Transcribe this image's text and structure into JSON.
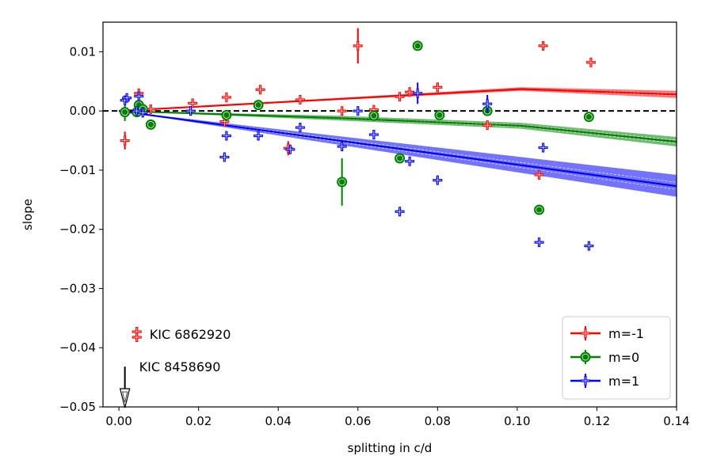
{
  "chart_data": {
    "type": "scatter",
    "title": "",
    "xlabel": "splitting in c/d",
    "ylabel": "slope",
    "xlim": [
      -0.004,
      0.14
    ],
    "ylim": [
      -0.05,
      0.015
    ],
    "xticks": [
      0.0,
      0.02,
      0.04,
      0.06,
      0.08,
      0.1,
      0.12,
      0.14
    ],
    "xtick_labels": [
      "0.00",
      "0.02",
      "0.04",
      "0.06",
      "0.08",
      "0.10",
      "0.12",
      "0.14"
    ],
    "yticks": [
      -0.05,
      -0.04,
      -0.03,
      -0.02,
      -0.01,
      0.0,
      0.01
    ],
    "ytick_labels": [
      "−0.05",
      "−0.04",
      "−0.03",
      "−0.02",
      "−0.01",
      "0.00",
      "0.01"
    ],
    "grid": false,
    "legend_position": "lower-right",
    "reference_line": {
      "y": 0,
      "style": "dashed",
      "color": "#000000"
    },
    "series": [
      {
        "name": "m=-1",
        "color": "#ff0000",
        "marker": "plus",
        "points": [
          {
            "x": 0.0015,
            "y": -0.005,
            "yerr": 0.0015
          },
          {
            "x": 0.0045,
            "y": -0.0002,
            "yerr": 0.0003
          },
          {
            "x": 0.005,
            "y": 0.003,
            "yerr": 0.0003
          },
          {
            "x": 0.006,
            "y": 0.0002,
            "yerr": 0.0003
          },
          {
            "x": 0.008,
            "y": 0.0003,
            "yerr": 0.0003
          },
          {
            "x": 0.0185,
            "y": 0.0013,
            "yerr": 0.0002
          },
          {
            "x": 0.0265,
            "y": -0.0018,
            "yerr": 0.0003
          },
          {
            "x": 0.027,
            "y": 0.0023,
            "yerr": 0.0002
          },
          {
            "x": 0.0355,
            "y": 0.0036,
            "yerr": 0.0002
          },
          {
            "x": 0.0425,
            "y": -0.0063,
            "yerr": 0.0012
          },
          {
            "x": 0.0455,
            "y": 0.0019,
            "yerr": 0.0002
          },
          {
            "x": 0.056,
            "y": 0.0,
            "yerr": 0.0002
          },
          {
            "x": 0.06,
            "y": 0.011,
            "yerr": 0.003
          },
          {
            "x": 0.064,
            "y": 0.0002,
            "yerr": 0.0002
          },
          {
            "x": 0.0705,
            "y": 0.0024,
            "yerr": 0.0003
          },
          {
            "x": 0.073,
            "y": 0.0032,
            "yerr": 0.0004
          },
          {
            "x": 0.08,
            "y": 0.004,
            "yerr": 0.0002
          },
          {
            "x": 0.0925,
            "y": -0.0024,
            "yerr": 0.0002
          },
          {
            "x": 0.1055,
            "y": -0.0108,
            "yerr": 0.0002
          },
          {
            "x": 0.1065,
            "y": 0.011,
            "yerr": 0.0005
          },
          {
            "x": 0.1185,
            "y": 0.0082,
            "yerr": 0.0002
          }
        ],
        "fit": [
          [
            0.0,
            0.0
          ],
          [
            0.101,
            0.0037
          ],
          [
            0.14,
            0.0028
          ]
        ],
        "fit_band": [
          [
            0.0,
            0.0,
            0.0
          ],
          [
            0.101,
            0.0034,
            0.004
          ],
          [
            0.14,
            0.0022,
            0.0034
          ]
        ]
      },
      {
        "name": "m=0",
        "color": "#008000",
        "marker": "circle",
        "points": [
          {
            "x": 0.0015,
            "y": -0.0002,
            "yerr": 0.0015
          },
          {
            "x": 0.0045,
            "y": -0.0002,
            "yerr": 0.0003
          },
          {
            "x": 0.005,
            "y": 0.001,
            "yerr": 0.0003
          },
          {
            "x": 0.006,
            "y": 0.0003,
            "yerr": 0.0003
          },
          {
            "x": 0.008,
            "y": -0.0023,
            "yerr": 0.0003
          },
          {
            "x": 0.027,
            "y": -0.0007,
            "yerr": 0.0003
          },
          {
            "x": 0.035,
            "y": 0.001,
            "yerr": 0.0003
          },
          {
            "x": 0.056,
            "y": -0.012,
            "yerr": 0.004
          },
          {
            "x": 0.064,
            "y": -0.0008,
            "yerr": 0.0003
          },
          {
            "x": 0.0705,
            "y": -0.008,
            "yerr": 0.0003
          },
          {
            "x": 0.075,
            "y": 0.011,
            "yerr": 0.0003
          },
          {
            "x": 0.0805,
            "y": -0.0007,
            "yerr": 0.0003
          },
          {
            "x": 0.0925,
            "y": 0.0,
            "yerr": 0.0003
          },
          {
            "x": 0.1055,
            "y": -0.0167,
            "yerr": 0.0003
          },
          {
            "x": 0.118,
            "y": -0.001,
            "yerr": 0.0003
          }
        ],
        "fit": [
          [
            0.0,
            0.0
          ],
          [
            0.055,
            -0.0012
          ],
          [
            0.101,
            -0.0025
          ],
          [
            0.14,
            -0.0052
          ]
        ],
        "fit_band": [
          [
            0.0,
            0.0,
            0.0
          ],
          [
            0.055,
            -0.0016,
            -0.0008
          ],
          [
            0.101,
            -0.003,
            -0.002
          ],
          [
            0.14,
            -0.006,
            -0.0044
          ]
        ]
      },
      {
        "name": "m=1",
        "color": "#0000ff",
        "marker": "plus",
        "points": [
          {
            "x": 0.0015,
            "y": 0.0018,
            "yerr": 0.0008
          },
          {
            "x": 0.002,
            "y": 0.0022,
            "yerr": 0.0003
          },
          {
            "x": 0.0045,
            "y": 0.0,
            "yerr": 0.0003
          },
          {
            "x": 0.005,
            "y": 0.0025,
            "yerr": 0.0003
          },
          {
            "x": 0.006,
            "y": -0.0003,
            "yerr": 0.0003
          },
          {
            "x": 0.018,
            "y": 0.0,
            "yerr": 0.0003
          },
          {
            "x": 0.0265,
            "y": -0.0078,
            "yerr": 0.0003
          },
          {
            "x": 0.027,
            "y": -0.0042,
            "yerr": 0.0003
          },
          {
            "x": 0.035,
            "y": -0.0042,
            "yerr": 0.0003
          },
          {
            "x": 0.043,
            "y": -0.0065,
            "yerr": 0.0005
          },
          {
            "x": 0.0455,
            "y": -0.0028,
            "yerr": 0.0003
          },
          {
            "x": 0.056,
            "y": -0.006,
            "yerr": 0.0003
          },
          {
            "x": 0.06,
            "y": 0.0,
            "yerr": 0.0003
          },
          {
            "x": 0.064,
            "y": -0.004,
            "yerr": 0.0003
          },
          {
            "x": 0.0705,
            "y": -0.017,
            "yerr": 0.0003
          },
          {
            "x": 0.073,
            "y": -0.0085,
            "yerr": 0.0003
          },
          {
            "x": 0.075,
            "y": 0.003,
            "yerr": 0.0018
          },
          {
            "x": 0.08,
            "y": -0.0117,
            "yerr": 0.0003
          },
          {
            "x": 0.0925,
            "y": 0.0012,
            "yerr": 0.0015
          },
          {
            "x": 0.1055,
            "y": -0.0222,
            "yerr": 0.0003
          },
          {
            "x": 0.1065,
            "y": -0.0062,
            "yerr": 0.0003
          },
          {
            "x": 0.118,
            "y": -0.0228,
            "yerr": 0.0003
          }
        ],
        "fit": [
          [
            0.0,
            0.0
          ],
          [
            0.14,
            -0.0127
          ]
        ],
        "fit_band": [
          [
            0.0,
            0.0,
            0.0
          ],
          [
            0.14,
            -0.0145,
            -0.0108
          ]
        ]
      }
    ],
    "special_points": [
      {
        "label": "KIC 6862920",
        "x": 0.0045,
        "y": -0.0377,
        "color": "#ff0000",
        "marker": "plus"
      },
      {
        "label": "KIC 8458690",
        "x": 0.0015,
        "y": -0.0432,
        "y_end": -0.0488,
        "color": "#000000",
        "marker": "down-arrow"
      }
    ]
  }
}
